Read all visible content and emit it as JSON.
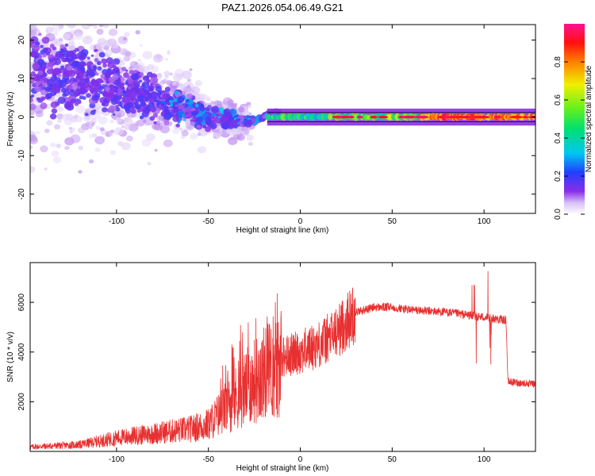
{
  "title": "PAZ1.2026.054.06.49.G21",
  "chart_data": [
    {
      "type": "heatmap",
      "xlabel": "Height of straight line (km)",
      "ylabel": "Frequency (Hz)",
      "xlim": [
        -147,
        128
      ],
      "ylim": [
        -25,
        24
      ],
      "xticks": [
        -100,
        -50,
        0,
        50,
        100
      ],
      "xtick_labels": [
        "-100",
        "-50",
        "0",
        "50",
        "100"
      ],
      "yticks": [
        -20,
        -10,
        0,
        10,
        20
      ],
      "ytick_labels": [
        "-20",
        "-10",
        "0",
        "10",
        "20"
      ],
      "colorbar": {
        "label": "Normalized spectral amplitude",
        "range": [
          0,
          1
        ],
        "ticks": [
          0.0,
          0.2,
          0.4,
          0.6,
          0.8
        ],
        "tick_labels": [
          "0.0",
          "0.2",
          "0.4",
          "0.6",
          "0.8"
        ],
        "colormap": "rainbow (white to purple to blue to cyan to green to yellow to red to magenta)"
      },
      "trend": {
        "description": "Scattered low-amplitude energy at low heights; signal converges from ~8 Hz at -100 km to 0 Hz near -15 km and stays at 0 Hz with high amplitude above 0 km",
        "center_line": [
          [
            -147,
            12
          ],
          [
            -120,
            10
          ],
          [
            -100,
            8
          ],
          [
            -80,
            5
          ],
          [
            -60,
            2
          ],
          [
            -50,
            0
          ],
          [
            -35,
            -1
          ],
          [
            -25,
            -1
          ],
          [
            -15,
            1
          ],
          [
            0,
            0
          ],
          [
            128,
            0
          ]
        ]
      }
    },
    {
      "type": "line",
      "xlabel": "Height of straight line (km)",
      "ylabel": "SNR (10 * v/v)",
      "xlim": [
        -147,
        128
      ],
      "ylim": [
        0,
        7600
      ],
      "xticks": [
        -100,
        -50,
        0,
        50,
        100
      ],
      "xtick_labels": [
        "-100",
        "-50",
        "0",
        "50",
        "100"
      ],
      "yticks": [
        2000,
        4000,
        6000
      ],
      "ytick_labels": [
        "2000",
        "4000",
        "6000"
      ],
      "color": "#e83030",
      "envelope": [
        [
          -147,
          200
        ],
        [
          -120,
          300
        ],
        [
          -100,
          600
        ],
        [
          -80,
          800
        ],
        [
          -60,
          1000
        ],
        [
          -50,
          1200
        ],
        [
          -40,
          2000
        ],
        [
          -30,
          2800
        ],
        [
          -20,
          3500
        ],
        [
          -10,
          3800
        ],
        [
          0,
          4000
        ],
        [
          10,
          4300
        ],
        [
          20,
          4800
        ],
        [
          30,
          5600
        ],
        [
          40,
          5800
        ],
        [
          50,
          5800
        ],
        [
          60,
          5700
        ],
        [
          70,
          5650
        ],
        [
          80,
          5600
        ],
        [
          90,
          5500
        ],
        [
          100,
          5400
        ],
        [
          110,
          5300
        ],
        [
          112,
          5300
        ],
        [
          113,
          2800
        ],
        [
          128,
          2700
        ]
      ]
    }
  ]
}
